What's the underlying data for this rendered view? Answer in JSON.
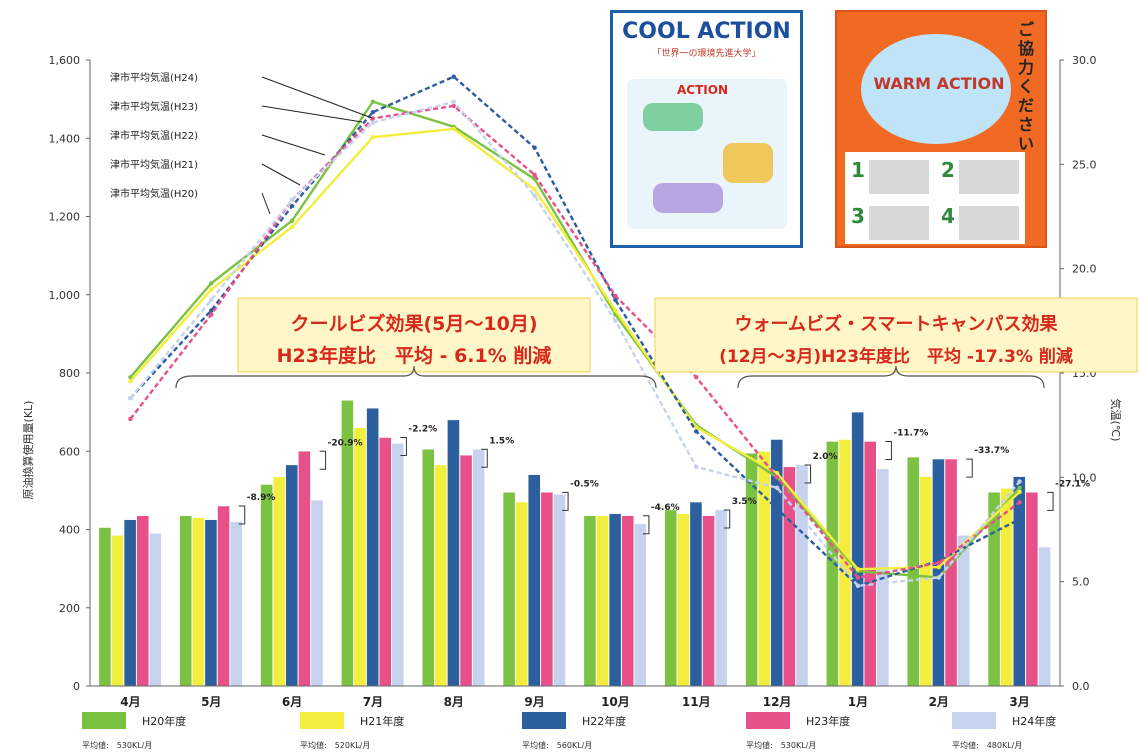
{
  "chart_data": {
    "type": "bar+line",
    "ylabel_left": "原油換算使用量(KL)",
    "ylabel_right": "気温(℃)",
    "yleft_ticks": [
      "0",
      "200",
      "400",
      "600",
      "800",
      "1,000",
      "1,200",
      "1,400",
      "1,600"
    ],
    "yleft_range": [
      0,
      1600
    ],
    "yright_ticks": [
      "0.0",
      "5.0",
      "10.0",
      "15.0",
      "20.0",
      "25.0",
      "30.0"
    ],
    "yright_range": [
      0,
      30
    ],
    "categories": [
      "4月",
      "5月",
      "6月",
      "7月",
      "8月",
      "9月",
      "10月",
      "11月",
      "12月",
      "1月",
      "2月",
      "3月"
    ],
    "bar_series": [
      {
        "name": "H20年度",
        "avg": "平均値:　530KL/月",
        "color": "#7cc242",
        "values": [
          405,
          435,
          515,
          730,
          605,
          495,
          435,
          450,
          595,
          625,
          585,
          495
        ]
      },
      {
        "name": "H21年度",
        "avg": "平均値:　520KL/月",
        "color": "#f3ee3d",
        "values": [
          385,
          430,
          535,
          660,
          565,
          470,
          435,
          440,
          600,
          630,
          535,
          505
        ]
      },
      {
        "name": "H22年度",
        "avg": "平均値:　560KL/月",
        "color": "#2c5f9e",
        "values": [
          425,
          425,
          565,
          710,
          680,
          540,
          440,
          470,
          630,
          700,
          580,
          535
        ]
      },
      {
        "name": "H23年度",
        "avg": "平均値:　530KL/月",
        "color": "#e8508a",
        "values": [
          435,
          460,
          600,
          635,
          590,
          495,
          435,
          435,
          560,
          625,
          580,
          495
        ]
      },
      {
        "name": "H24年度",
        "avg": "平均値:　480KL/月",
        "color": "#c6d3ee",
        "values": [
          390,
          420,
          475,
          620,
          605,
          490,
          415,
          450,
          565,
          555,
          385,
          355
        ]
      }
    ],
    "temperature_series": [
      {
        "name": "津市平均気温(H20)",
        "color": "#7cc242",
        "values": [
          14.8,
          19.3,
          22.3,
          28.0,
          26.8,
          24.3,
          17.8,
          12.5,
          10.0,
          5.5,
          5.2,
          9.5
        ]
      },
      {
        "name": "津市平均気温(H21)",
        "color": "#f3ee3d",
        "values": [
          14.6,
          19.0,
          22.0,
          26.3,
          26.7,
          23.8,
          18.0,
          12.4,
          10.2,
          5.6,
          5.7,
          9.3
        ]
      },
      {
        "name": "津市平均気温(H22)",
        "color": "#2c5f9e",
        "values": [
          13.8,
          18.0,
          23.0,
          27.5,
          29.2,
          25.8,
          18.5,
          12.2,
          8.5,
          4.8,
          6.0,
          8.0
        ]
      },
      {
        "name": "津市平均気温(H23)",
        "color": "#e8508a",
        "values": [
          12.8,
          17.8,
          23.3,
          27.2,
          27.8,
          24.5,
          18.7,
          14.8,
          10.0,
          5.2,
          5.9,
          8.8
        ]
      },
      {
        "name": "津市平均気温(H24)",
        "color": "#c6d3ee",
        "values": [
          13.8,
          18.5,
          23.3,
          27.0,
          28.0,
          23.5,
          17.5,
          10.5,
          9.5,
          4.8,
          5.2,
          9.8
        ]
      }
    ],
    "temp_line_labels": [
      "津市平均気温(H24)",
      "津市平均気温(H23)",
      "津市平均気温(H22)",
      "津市平均気温(H21)",
      "津市平均気温(H20)"
    ],
    "pct_annotations": [
      {
        "month": "5月",
        "text": "-8.9%"
      },
      {
        "month": "6月",
        "text": "-20.9%"
      },
      {
        "month": "7月",
        "text": "-2.2%"
      },
      {
        "month": "8月",
        "text": "1.5%"
      },
      {
        "month": "9月",
        "text": "-0.5%"
      },
      {
        "month": "10月",
        "text": "-4.6%"
      },
      {
        "month": "11月",
        "text": "3.5%"
      },
      {
        "month": "12月",
        "text": "2.0%"
      },
      {
        "month": "1月",
        "text": "-11.7%"
      },
      {
        "month": "2月",
        "text": "-33.7%"
      },
      {
        "month": "3月",
        "text": "-27.1%"
      }
    ],
    "banners": [
      {
        "line1": "クールビズ効果(5月～10月)",
        "line2": "H23年度比　平均 - 6.1% 削減"
      },
      {
        "line1": "ウォームビズ・スマートキャンパス効果",
        "line2": "(12月～3月)H23年度比　平均 -17.3% 削減"
      }
    ]
  },
  "posters": {
    "cool": {
      "title": "COOL ACTION",
      "subtitle": "「世界一の環境先進大学」",
      "action": "ACTION"
    },
    "warm": {
      "title": "WARM ACTION",
      "side_text": "ご協力ください",
      "nums": [
        "1",
        "2",
        "3",
        "4"
      ]
    }
  }
}
